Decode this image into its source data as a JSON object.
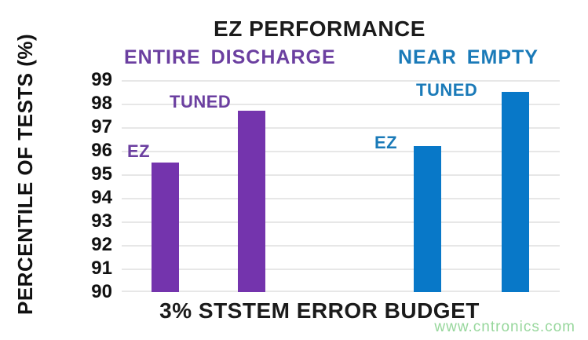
{
  "watermark": {
    "text": "www.cntronics.com",
    "color": "#97d79c"
  },
  "chart_data": {
    "type": "bar",
    "title": "EZ PERFORMANCE",
    "ylabel": "PERCENTILE OF TESTS (%)",
    "xlabel": "3% STSTEM ERROR BUDGET",
    "ylim": [
      90,
      99
    ],
    "yticks": [
      99,
      98,
      97,
      96,
      95,
      94,
      93,
      92,
      91,
      90
    ],
    "grid": true,
    "legend_position": "none",
    "grid_color": "#e7e7e7",
    "groups": [
      {
        "label": "ENTIRE DISCHARGE",
        "bar_color": "#7434ad",
        "text_color": "#6b3fa0",
        "bars": [
          {
            "label": "EZ",
            "value": 95.5
          },
          {
            "label": "TUNED",
            "value": 97.7
          }
        ]
      },
      {
        "label": "NEAR EMPTY",
        "bar_color": "#0878c8",
        "text_color": "#1a7ab8",
        "bars": [
          {
            "label": "EZ",
            "value": 96.2
          },
          {
            "label": "TUNED",
            "value": 98.5
          }
        ]
      }
    ]
  }
}
